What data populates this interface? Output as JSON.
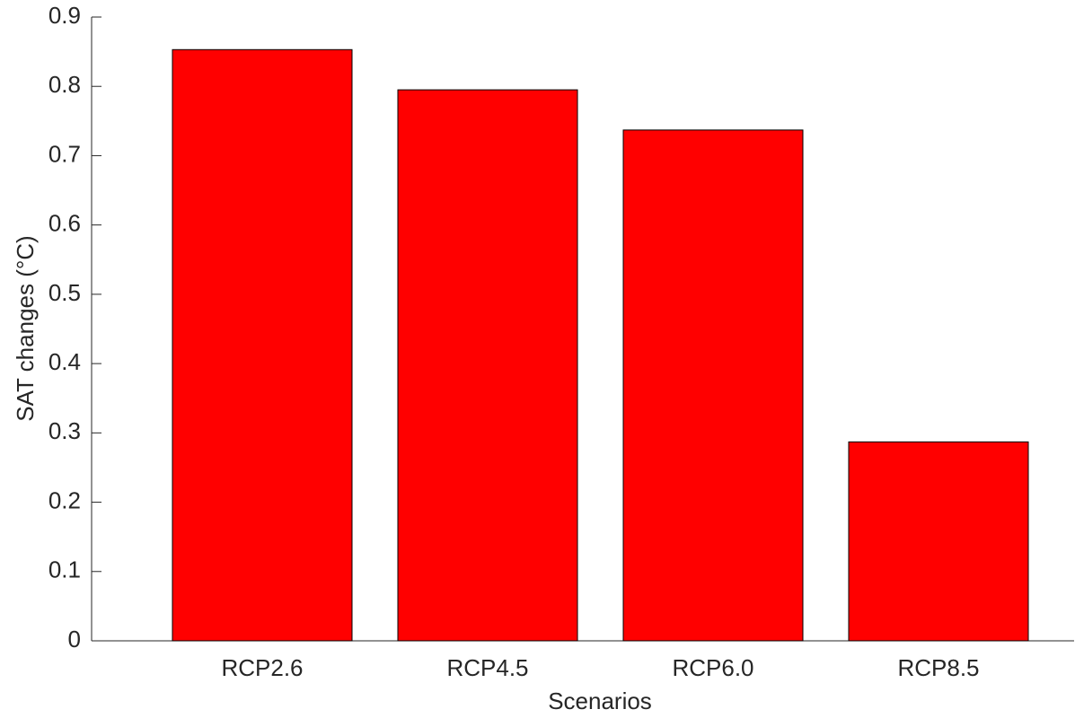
{
  "chart_data": {
    "type": "bar",
    "categories": [
      "RCP2.6",
      "RCP4.5",
      "RCP6.0",
      "RCP8.5"
    ],
    "values": [
      0.853,
      0.795,
      0.737,
      0.287
    ],
    "color": "#ff0000",
    "xlabel": "Scenarios",
    "ylabel": "SAT changes (°C)",
    "ylim": [
      0,
      0.9
    ],
    "yticks": [
      0,
      0.1,
      0.2,
      0.3,
      0.4,
      0.5,
      0.6,
      0.7,
      0.8,
      0.9
    ],
    "grid": false
  }
}
